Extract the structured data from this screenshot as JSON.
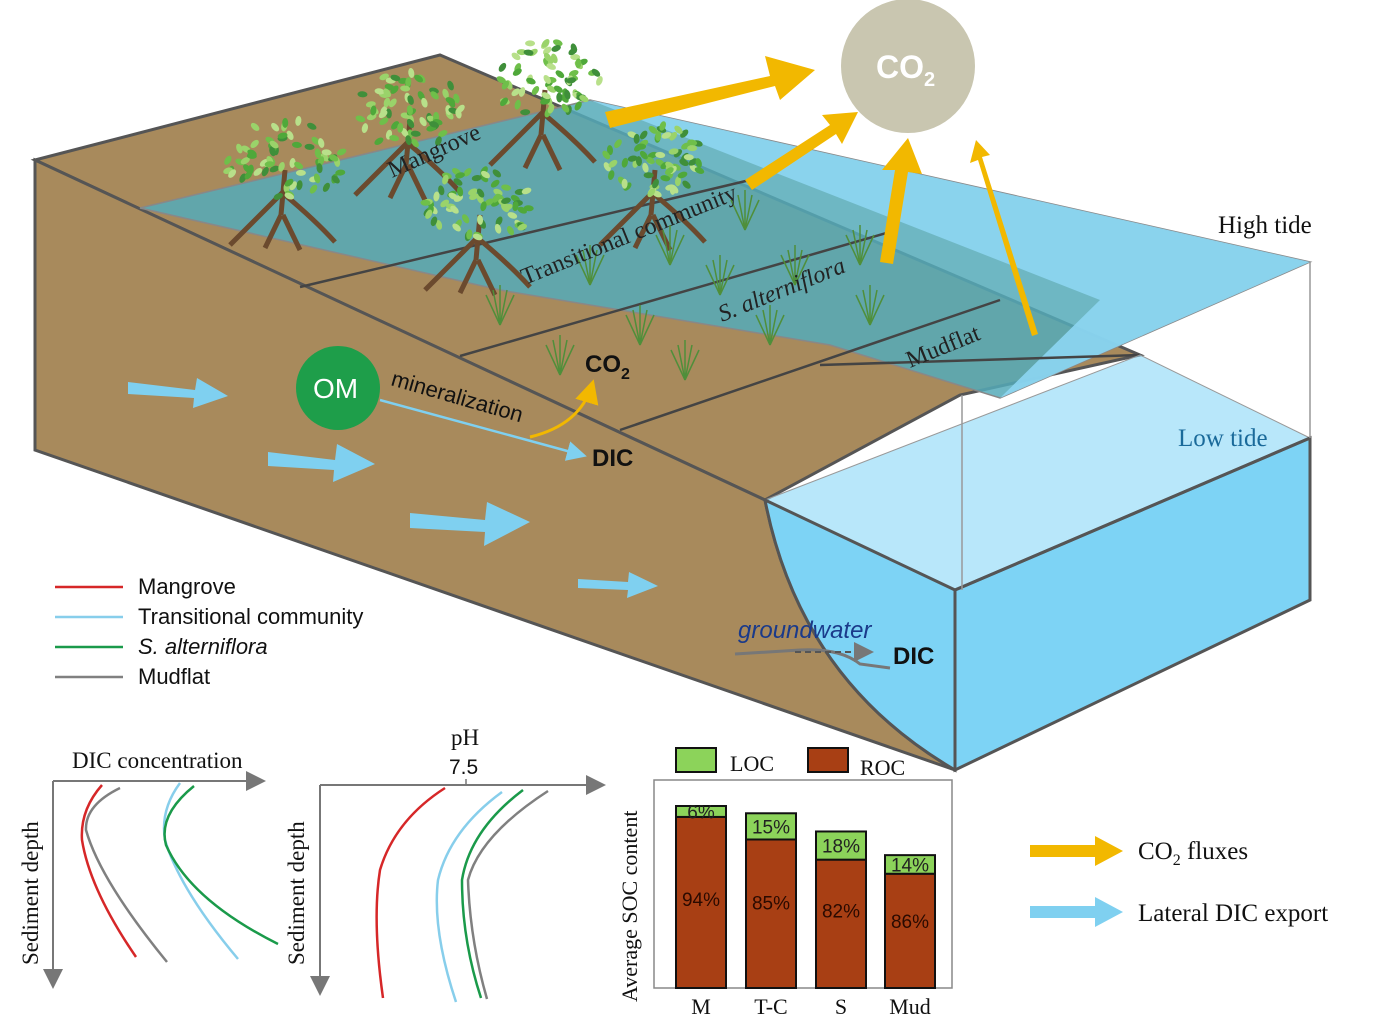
{
  "zones": {
    "mangrove": "Mangrove",
    "transitional": "Transitional community",
    "s_alterniflora": "S. alterniflora",
    "mudflat": "Mudflat"
  },
  "tides": {
    "high": "High tide",
    "low": "Low tide"
  },
  "atmosphere": {
    "co2": "CO",
    "co2_sub": "2"
  },
  "process": {
    "om": "OM",
    "mineralization": "mineralization",
    "co2": "CO",
    "co2_sub": "2",
    "dic": "DIC",
    "groundwater": "groundwater",
    "dic_export": "DIC"
  },
  "legend_lines": [
    {
      "label": "Mangrove",
      "color": "#d62728"
    },
    {
      "label": "Transitional community",
      "color": "#87ceeb"
    },
    {
      "label": "S. alterniflora",
      "color": "#1a9a4a"
    },
    {
      "label": "Mudflat",
      "color": "#808080"
    }
  ],
  "legend_arrows": [
    {
      "label": "CO",
      "sub": "2",
      "suffix": " fluxes",
      "color": "#f2b800"
    },
    {
      "label": "Lateral DIC export",
      "color": "#7fd0f0"
    }
  ],
  "colors": {
    "sediment": "#a88a5c",
    "water_high": "#5fb4c4",
    "water_low": "#7dd3f5",
    "co2_circle": "#c9c6b0",
    "om_circle": "#1e9e4a",
    "loc": "#8cd35a",
    "roc": "#a83f14"
  },
  "chart_data": [
    {
      "type": "line",
      "xlabel": "DIC concentration",
      "ylabel": "Sediment depth",
      "series": [
        {
          "name": "Mangrove",
          "color": "#d62728"
        },
        {
          "name": "Transitional community",
          "color": "#87ceeb"
        },
        {
          "name": "S. alterniflora",
          "color": "#1a9a4a"
        },
        {
          "name": "Mudflat",
          "color": "#808080"
        }
      ]
    },
    {
      "type": "line",
      "xlabel": "pH",
      "xtick": "7.5",
      "ylabel": "Sediment depth",
      "series": [
        {
          "name": "Mangrove",
          "color": "#d62728"
        },
        {
          "name": "Transitional community",
          "color": "#87ceeb"
        },
        {
          "name": "S. alterniflora",
          "color": "#1a9a4a"
        },
        {
          "name": "Mudflat",
          "color": "#808080"
        }
      ]
    },
    {
      "type": "bar",
      "stacked": true,
      "ylabel": "Average SOC content",
      "categories": [
        "M",
        "T-C",
        "S",
        "Mud"
      ],
      "relative_total": [
        1.0,
        0.96,
        0.86,
        0.73
      ],
      "series": [
        {
          "name": "ROC",
          "values": [
            94,
            85,
            82,
            86
          ],
          "labels": [
            "94%",
            "85%",
            "82%",
            "86%"
          ],
          "color": "#a83f14"
        },
        {
          "name": "LOC",
          "values": [
            6,
            15,
            18,
            14
          ],
          "labels": [
            "6%",
            "15%",
            "18%",
            "14%"
          ],
          "color": "#8cd35a"
        }
      ]
    }
  ]
}
